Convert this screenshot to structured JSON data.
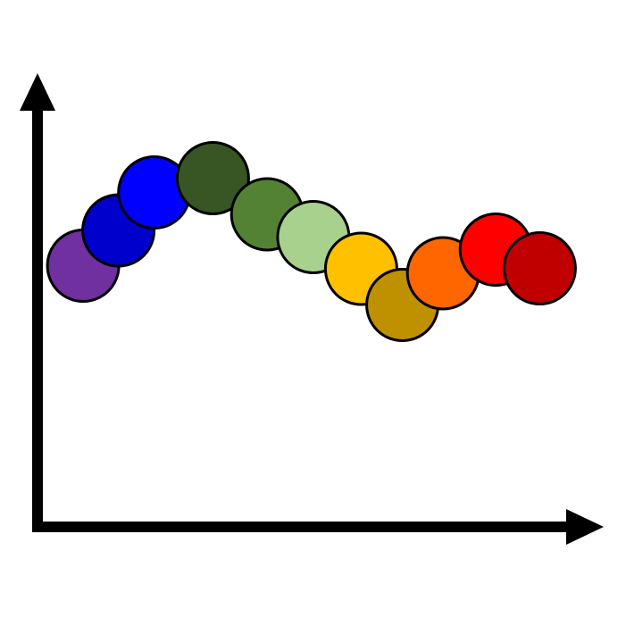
{
  "chart_data": {
    "type": "scatter",
    "title": "",
    "xlabel": "",
    "ylabel": "",
    "xlim": [
      0,
      100
    ],
    "ylim": [
      0,
      100
    ],
    "grid": false,
    "legend": "none",
    "points": [
      {
        "x": 8.4,
        "y": 58.5,
        "color": "#7030a0"
      },
      {
        "x": 14.9,
        "y": 66.4,
        "color": "#0000cc"
      },
      {
        "x": 21.5,
        "y": 74.9,
        "color": "#0000ff"
      },
      {
        "x": 32.3,
        "y": 78.1,
        "color": "#375623"
      },
      {
        "x": 42.3,
        "y": 70.0,
        "color": "#548235"
      },
      {
        "x": 50.8,
        "y": 64.9,
        "color": "#a9d18e"
      },
      {
        "x": 59.6,
        "y": 57.8,
        "color": "#ffc000"
      },
      {
        "x": 67.2,
        "y": 49.7,
        "color": "#bf9000"
      },
      {
        "x": 74.7,
        "y": 56.8,
        "color": "#ff6600"
      },
      {
        "x": 84.4,
        "y": 62.1,
        "color": "#ff0000"
      },
      {
        "x": 92.5,
        "y": 57.9,
        "color": "#c00000"
      }
    ]
  }
}
